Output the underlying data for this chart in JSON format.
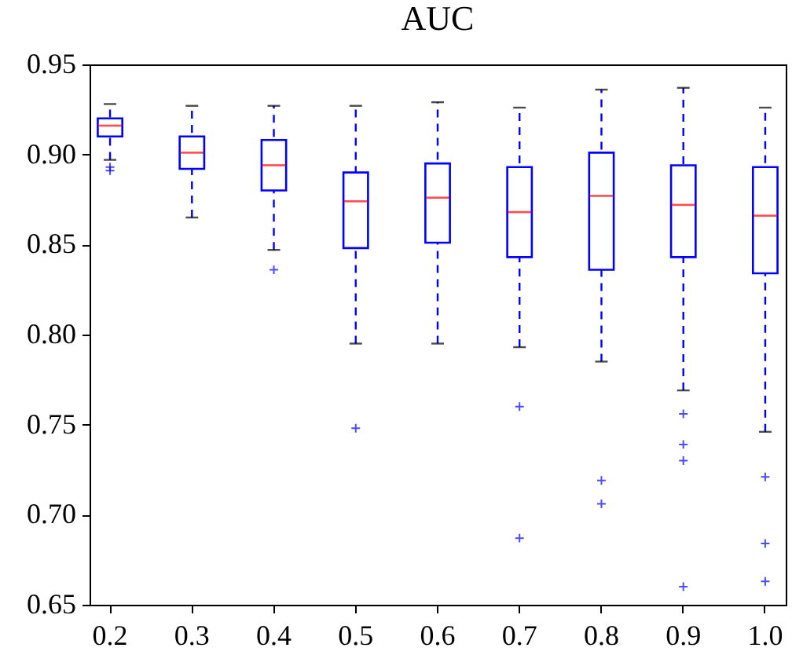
{
  "chart_data": {
    "type": "box",
    "title": "AUC",
    "categories": [
      "0.2",
      "0.3",
      "0.4",
      "0.5",
      "0.6",
      "0.7",
      "0.8",
      "0.9",
      "1.0"
    ],
    "boxes": [
      {
        "low": 0.897,
        "q1": 0.91,
        "median": 0.916,
        "q3": 0.92,
        "high": 0.928,
        "outliers": [
          0.893,
          0.891
        ]
      },
      {
        "low": 0.865,
        "q1": 0.892,
        "median": 0.901,
        "q3": 0.91,
        "high": 0.927
      },
      {
        "low": 0.847,
        "q1": 0.88,
        "median": 0.894,
        "q3": 0.908,
        "high": 0.927,
        "outliers": [
          0.836
        ]
      },
      {
        "low": 0.795,
        "q1": 0.848,
        "median": 0.874,
        "q3": 0.89,
        "high": 0.927,
        "outliers": [
          0.748
        ]
      },
      {
        "low": 0.795,
        "q1": 0.851,
        "median": 0.876,
        "q3": 0.895,
        "high": 0.929
      },
      {
        "low": 0.793,
        "q1": 0.843,
        "median": 0.868,
        "q3": 0.893,
        "high": 0.926,
        "outliers": [
          0.76,
          0.687
        ]
      },
      {
        "low": 0.785,
        "q1": 0.836,
        "median": 0.877,
        "q3": 0.901,
        "high": 0.936,
        "outliers": [
          0.719,
          0.706
        ]
      },
      {
        "low": 0.769,
        "q1": 0.843,
        "median": 0.872,
        "q3": 0.894,
        "high": 0.937,
        "outliers": [
          0.756,
          0.739,
          0.73,
          0.66
        ]
      },
      {
        "low": 0.746,
        "q1": 0.834,
        "median": 0.866,
        "q3": 0.893,
        "high": 0.926,
        "outliers": [
          0.721,
          0.684,
          0.663
        ]
      }
    ],
    "color": "#0000ff",
    "ylim": [
      0.65,
      0.95
    ],
    "yticks": [
      0.65,
      {
        "value": 0.7,
        "label": "0.70"
      },
      0.75,
      {
        "value": 0.8,
        "label": "0.80"
      },
      0.85,
      {
        "value": 0.9,
        "label": "0.90"
      },
      0.95
    ],
    "grid": false
  }
}
